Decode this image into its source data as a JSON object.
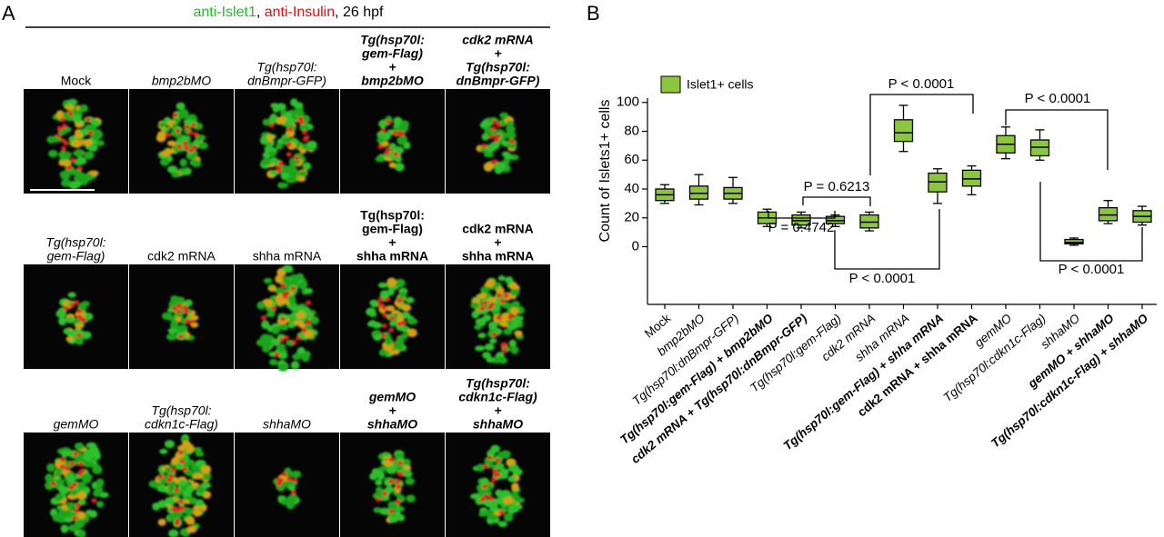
{
  "panel_a": {
    "label": "A",
    "title_parts": [
      {
        "text": "anti-Islet1",
        "color": "#22bb22"
      },
      {
        "text": ", ",
        "color": "#000000"
      },
      {
        "text": "anti-Insulin",
        "color": "#dd1111"
      },
      {
        "text": ", 26 hpf",
        "color": "#000000"
      }
    ],
    "rows": [
      [
        {
          "lines": [
            "Mock"
          ],
          "style": "plain"
        },
        {
          "lines": [
            "bmp2bMO"
          ],
          "style": "italic"
        },
        {
          "lines": [
            "Tg(hsp70l:",
            "dnBmpr-GFP)"
          ],
          "style": "italic"
        },
        {
          "lines": [
            "Tg(hsp70l:",
            "gem-Flag)",
            "+",
            "bmp2bMO"
          ],
          "style": "bold-italic"
        },
        {
          "lines": [
            "cdk2 mRNA",
            "+",
            "Tg(hsp70l:",
            "dnBmpr-GFP)"
          ],
          "style": "bold-italic"
        }
      ],
      [
        {
          "lines": [
            "Tg(hsp70l:",
            "gem-Flag)"
          ],
          "style": "italic"
        },
        {
          "lines": [
            "cdk2 mRNA"
          ],
          "style": "plain"
        },
        {
          "lines": [
            "shha mRNA"
          ],
          "style": "plain"
        },
        {
          "lines": [
            "Tg(hsp70l:",
            "gem-Flag)",
            "+",
            "shha mRNA"
          ],
          "style": "bold"
        },
        {
          "lines": [
            "cdk2 mRNA",
            "+",
            "shha mRNA"
          ],
          "style": "bold"
        }
      ],
      [
        {
          "lines": [
            "gemMO"
          ],
          "style": "italic"
        },
        {
          "lines": [
            "Tg(hsp70l:",
            "cdkn1c-Flag)"
          ],
          "style": "italic"
        },
        {
          "lines": [
            "shhaMO"
          ],
          "style": "italic"
        },
        {
          "lines": [
            "gemMO",
            "+",
            "shhaMO"
          ],
          "style": "bold-italic"
        },
        {
          "lines": [
            "Tg(hsp70l:",
            "cdkn1c-Flag)",
            "+",
            "shhaMO"
          ],
          "style": "bold-italic"
        }
      ]
    ]
  },
  "chart_data": {
    "type": "box",
    "panel_label": "B",
    "y_label": "Count of Islets1+ cells",
    "categories": [
      "Mock",
      "bmp2bMO",
      "Tg(hsp70l:dnBmpr-GFP)",
      "Tg(hsp70l:gem-Flag) + bmp2bMO",
      "cdk2 mRNA + Tg(hsp70l:dnBmpr-GFP)",
      "Tg(hsp70l:gem-Flag)",
      "cdk2 mRNA",
      "shha mRNA",
      "Tg(hsp70l:gem-Flag) + shha mRNA",
      "cdk2 mRNA + shha mRNA",
      "gemMO",
      "Tg(hsp70l:cdkn1c-Flag)",
      "shhaMO",
      "gemMO + shhaMO",
      "Tg(hsp70l:cdkn1c-Flag) + shhaMO"
    ],
    "category_styles": [
      "plain",
      "italic",
      "italic",
      "bold-italic",
      "bold-italic",
      "italic",
      "italic",
      "italic",
      "bold-italic",
      "bold",
      "italic",
      "italic",
      "italic",
      "bold-italic",
      "bold-italic"
    ],
    "series": [
      {
        "name": "Islet1+ cells",
        "color": "#8cc63f",
        "min": [
          30,
          29,
          30,
          14,
          13,
          14,
          11,
          66,
          30,
          36,
          61,
          60,
          1,
          16,
          15
        ],
        "q1": [
          32,
          33,
          33,
          16,
          15,
          16,
          13,
          73,
          38,
          42,
          65,
          63,
          2,
          18,
          17
        ],
        "median": [
          36,
          37,
          37,
          20,
          18,
          18,
          17,
          79,
          45,
          47,
          71,
          69,
          3,
          22,
          21
        ],
        "q3": [
          40,
          42,
          41,
          24,
          22,
          21,
          22,
          88,
          51,
          53,
          77,
          74,
          5,
          27,
          25
        ],
        "max": [
          43,
          50,
          48,
          26,
          24,
          22,
          24,
          98,
          54,
          56,
          83,
          81,
          6,
          32,
          28
        ]
      }
    ],
    "ylim": [
      -40,
      103
    ],
    "yticks": [
      0,
      20,
      40,
      60,
      80,
      100
    ],
    "legend": "top-left",
    "annotations": [
      "P < 0.0001",
      "P = 0.6213",
      "P = 0.4742",
      "P < 0.0001",
      "P < 0.0001",
      "P < 0.0001"
    ]
  }
}
